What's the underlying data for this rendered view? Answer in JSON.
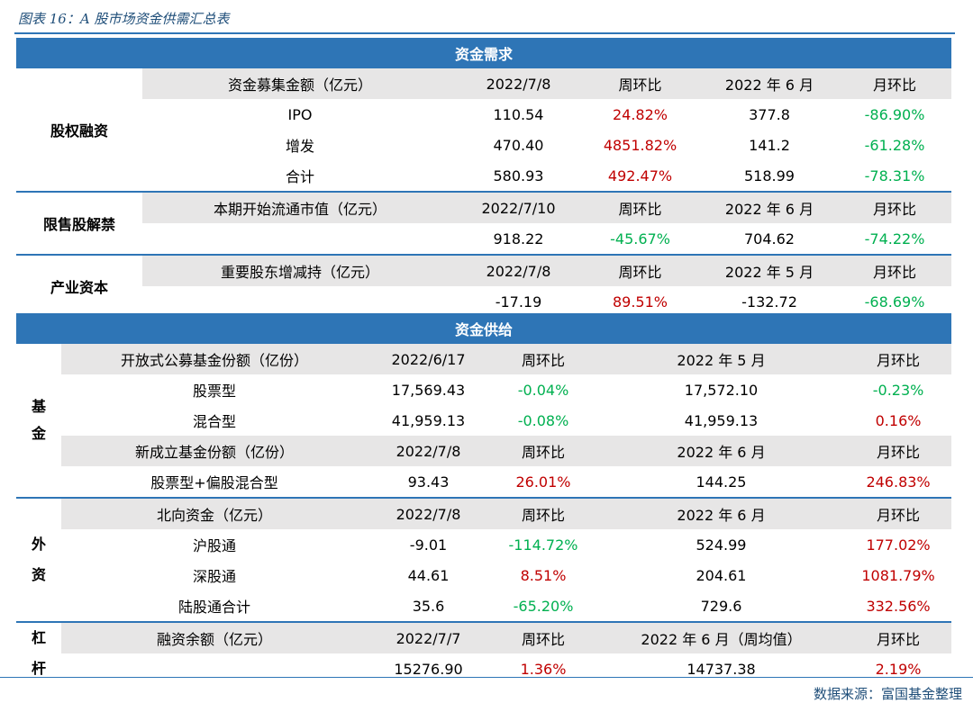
{
  "title": "图表 16：A 股市场资金供需汇总表",
  "demand": {
    "section_label": "资金需求",
    "equity": {
      "category": "股权融资",
      "header": [
        "资金募集金额（亿元）",
        "2022/7/8",
        "周环比",
        "2022 年 6 月",
        "月环比"
      ],
      "rows": [
        [
          "IPO",
          "110.54",
          "24.82%",
          "377.8",
          "-86.90%"
        ],
        [
          "增发",
          "470.40",
          "4851.82%",
          "141.2",
          "-61.28%"
        ],
        [
          "合计",
          "580.93",
          "492.47%",
          "518.99",
          "-78.31%"
        ]
      ]
    },
    "unlock": {
      "category": "限售股解禁",
      "header": [
        "本期开始流通市值（亿元）",
        "2022/7/10",
        "周环比",
        "2022 年 6 月",
        "月环比"
      ],
      "row": [
        "",
        "918.22",
        "-45.67%",
        "704.62",
        "-74.22%"
      ]
    },
    "industrial": {
      "category": "产业资本",
      "header": [
        "重要股东增减持（亿元）",
        "2022/7/8",
        "周环比",
        "2022 年 5 月",
        "月环比"
      ],
      "row": [
        "",
        "-17.19",
        "89.51%",
        "-132.72",
        "-68.69%"
      ]
    }
  },
  "supply": {
    "section_label": "资金供给",
    "fund": {
      "category_lines": [
        "基",
        "金"
      ],
      "header1": [
        "开放式公募基金份额（亿份）",
        "2022/6/17",
        "周环比",
        "2022 年 5 月",
        "月环比"
      ],
      "rows1": [
        [
          "股票型",
          "17,569.43",
          "-0.04%",
          "17,572.10",
          "-0.23%"
        ],
        [
          "混合型",
          "41,959.13",
          "-0.08%",
          "41,959.13",
          "0.16%"
        ]
      ],
      "header2": [
        "新成立基金份额（亿份）",
        "2022/7/8",
        "周环比",
        "2022 年 6 月",
        "月环比"
      ],
      "rows2": [
        [
          "股票型+偏股混合型",
          "93.43",
          "26.01%",
          "144.25",
          "246.83%"
        ]
      ]
    },
    "foreign": {
      "category_lines": [
        "外",
        "资"
      ],
      "header": [
        "北向资金（亿元）",
        "2022/7/8",
        "周环比",
        "2022 年 6 月",
        "月环比"
      ],
      "rows": [
        [
          "沪股通",
          "-9.01",
          "-114.72%",
          "524.99",
          "177.02%"
        ],
        [
          "深股通",
          "44.61",
          "8.51%",
          "204.61",
          "1081.79%"
        ],
        [
          "陆股通合计",
          "35.6",
          "-65.20%",
          "729.6",
          "332.56%"
        ]
      ]
    },
    "leverage": {
      "category_lines": [
        "杠",
        "杆"
      ],
      "header": [
        "融资余额（亿元）",
        "2022/7/7",
        "周环比",
        "2022 年 6 月（周均值）",
        "月环比"
      ],
      "row": [
        "",
        "15276.90",
        "1.36%",
        "14737.38",
        "2.19%"
      ]
    }
  },
  "colors": {
    "accent": "#2e75b6",
    "header_bg": "#e7e6e6",
    "up": "#c00000",
    "down": "#00b050"
  },
  "source": "数据来源：富国基金整理"
}
